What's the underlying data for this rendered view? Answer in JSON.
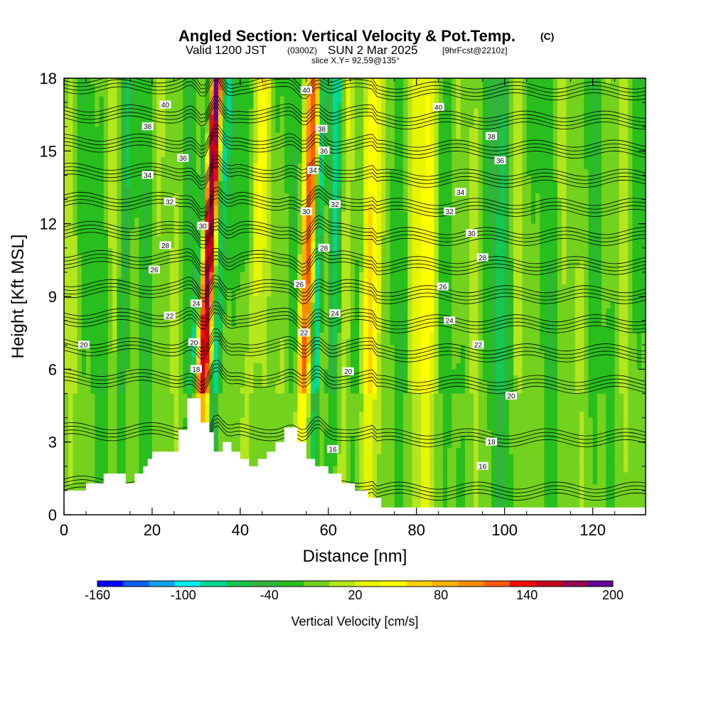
{
  "chart_data": {
    "type": "heatmap",
    "title_main": "Angled Section: Vertical Velocity & Pot.Temp.",
    "title_tag": "(C)",
    "subtitle_parts": [
      "Valid 1200 JST",
      "(0300Z)",
      "SUN 2 Mar 2025",
      "[9hrFcst@2210z]"
    ],
    "slice_text": "slice X,Y= 92,59@135°",
    "xlabel": "Distance [nm]",
    "ylabel": "Height [Kft MSL]",
    "xlim": [
      0,
      132
    ],
    "ylim": [
      0,
      18
    ],
    "x_ticks": [
      "0",
      "20",
      "40",
      "60",
      "80",
      "100",
      "120"
    ],
    "y_ticks": [
      "0",
      "3",
      "6",
      "9",
      "12",
      "15",
      "18"
    ],
    "colorbar": {
      "label": "Vertical Velocity [cm/s]",
      "range": [
        -160,
        200
      ],
      "step": 20,
      "tick_labels": [
        "-160",
        "-100",
        "-40",
        "20",
        "80",
        "140",
        "200"
      ],
      "colors": [
        "#0000ff",
        "#0a5ef5",
        "#12a0f0",
        "#00f0f0",
        "#00d896",
        "#14c850",
        "#32b43c",
        "#28be1e",
        "#73d21e",
        "#b4e61e",
        "#e6f500",
        "#ffff00",
        "#ffd200",
        "#ffb000",
        "#ff8c00",
        "#ff5a00",
        "#f00a0a",
        "#c8001e",
        "#960050",
        "#640096"
      ]
    },
    "terrain": [
      [
        0,
        1.0
      ],
      [
        5,
        1.0
      ],
      [
        5,
        1.3
      ],
      [
        9,
        1.3
      ],
      [
        9,
        1.7
      ],
      [
        14,
        1.7
      ],
      [
        14,
        1.3
      ],
      [
        16,
        1.3
      ],
      [
        16,
        1.7
      ],
      [
        18,
        1.7
      ],
      [
        18,
        2.0
      ],
      [
        19,
        2.0
      ],
      [
        19,
        2.3
      ],
      [
        20,
        2.3
      ],
      [
        20,
        2.6
      ],
      [
        26,
        2.6
      ],
      [
        26,
        3.5
      ],
      [
        28,
        3.5
      ],
      [
        28,
        4.8
      ],
      [
        31,
        4.8
      ],
      [
        31,
        3.8
      ],
      [
        33,
        3.8
      ],
      [
        33,
        3.4
      ],
      [
        34,
        3.4
      ],
      [
        34,
        2.6
      ],
      [
        36,
        2.6
      ],
      [
        36,
        3.0
      ],
      [
        38,
        3.0
      ],
      [
        38,
        2.6
      ],
      [
        40,
        2.6
      ],
      [
        40,
        2.3
      ],
      [
        42,
        2.3
      ],
      [
        42,
        2.0
      ],
      [
        44,
        2.0
      ],
      [
        44,
        2.3
      ],
      [
        46,
        2.3
      ],
      [
        46,
        2.6
      ],
      [
        48,
        2.6
      ],
      [
        48,
        3.0
      ],
      [
        50,
        3.0
      ],
      [
        50,
        3.6
      ],
      [
        53,
        3.6
      ],
      [
        53,
        3.0
      ],
      [
        55,
        3.0
      ],
      [
        55,
        2.3
      ],
      [
        57,
        2.3
      ],
      [
        57,
        2.0
      ],
      [
        60,
        2.0
      ],
      [
        60,
        1.7
      ],
      [
        63,
        1.7
      ],
      [
        63,
        1.3
      ],
      [
        66,
        1.3
      ],
      [
        66,
        1.0
      ],
      [
        69,
        1.0
      ],
      [
        69,
        0.7
      ],
      [
        72,
        0.7
      ],
      [
        72,
        0.3
      ],
      [
        132,
        0.3
      ]
    ],
    "velocity_features": [
      {
        "x": 32.5,
        "w": 1.7,
        "amp": 210,
        "tilt": 0.25
      },
      {
        "x": 35.0,
        "w": 1.3,
        "amp": -110,
        "tilt": 0.2
      },
      {
        "x": 30.2,
        "w": 0.8,
        "amp": -80,
        "tilt": 0.3
      },
      {
        "x": 55.0,
        "w": 1.5,
        "amp": 140,
        "tilt": 0.2
      },
      {
        "x": 57.5,
        "w": 1.0,
        "amp": -95,
        "tilt": 0.15
      },
      {
        "x": 61.0,
        "w": 1.5,
        "amp": -60,
        "tilt": 0.1
      },
      {
        "x": 13.5,
        "w": 1.2,
        "amp": -50,
        "tilt": 0.1
      },
      {
        "x": 43.0,
        "w": 1.6,
        "amp": 50,
        "tilt": 0.25
      },
      {
        "x": 63.5,
        "w": 1.6,
        "amp": 40,
        "tilt": 0.1
      },
      {
        "x": 70.0,
        "w": 2.2,
        "amp": 60,
        "tilt": 0.15
      },
      {
        "x": 82.0,
        "w": 2.4,
        "amp": 60,
        "tilt": 0.1
      },
      {
        "x": 99.0,
        "w": 1.7,
        "amp": -45,
        "tilt": 0.05
      }
    ],
    "theta_levels": [
      16,
      18,
      20,
      22,
      24,
      26,
      28,
      30,
      32,
      34,
      36,
      38,
      40
    ],
    "theta_labels": [
      {
        "x": 4.5,
        "y": 7.0,
        "v": "20"
      },
      {
        "x": 23,
        "y": 16.9,
        "v": "40"
      },
      {
        "x": 19,
        "y": 16.0,
        "v": "38"
      },
      {
        "x": 27,
        "y": 14.7,
        "v": "36"
      },
      {
        "x": 19,
        "y": 14.0,
        "v": "34"
      },
      {
        "x": 24,
        "y": 12.9,
        "v": "32"
      },
      {
        "x": 23,
        "y": 11.1,
        "v": "28"
      },
      {
        "x": 20.5,
        "y": 10.1,
        "v": "26"
      },
      {
        "x": 24,
        "y": 8.2,
        "v": "22"
      },
      {
        "x": 31.5,
        "y": 11.9,
        "v": "30"
      },
      {
        "x": 30,
        "y": 8.7,
        "v": "24"
      },
      {
        "x": 29.5,
        "y": 7.1,
        "v": "20"
      },
      {
        "x": 30,
        "y": 6.0,
        "v": "18"
      },
      {
        "x": 55,
        "y": 17.5,
        "v": "40"
      },
      {
        "x": 58.5,
        "y": 15.9,
        "v": "38"
      },
      {
        "x": 59,
        "y": 15.0,
        "v": "36"
      },
      {
        "x": 56.5,
        "y": 14.2,
        "v": "34"
      },
      {
        "x": 55,
        "y": 12.5,
        "v": "30"
      },
      {
        "x": 61.5,
        "y": 12.8,
        "v": "32"
      },
      {
        "x": 59,
        "y": 11.0,
        "v": "28"
      },
      {
        "x": 53.5,
        "y": 9.5,
        "v": "26"
      },
      {
        "x": 61.5,
        "y": 8.3,
        "v": "24"
      },
      {
        "x": 54.5,
        "y": 7.5,
        "v": "22"
      },
      {
        "x": 64.5,
        "y": 5.9,
        "v": "20"
      },
      {
        "x": 61,
        "y": 2.7,
        "v": "16"
      },
      {
        "x": 85,
        "y": 16.8,
        "v": "40"
      },
      {
        "x": 97,
        "y": 15.6,
        "v": "38"
      },
      {
        "x": 99,
        "y": 14.6,
        "v": "36"
      },
      {
        "x": 90,
        "y": 13.3,
        "v": "34"
      },
      {
        "x": 87.5,
        "y": 12.5,
        "v": "32"
      },
      {
        "x": 92.5,
        "y": 11.6,
        "v": "30"
      },
      {
        "x": 95,
        "y": 10.6,
        "v": "28"
      },
      {
        "x": 86,
        "y": 9.4,
        "v": "26"
      },
      {
        "x": 87.5,
        "y": 8.0,
        "v": "24"
      },
      {
        "x": 94,
        "y": 7.0,
        "v": "22"
      },
      {
        "x": 101.5,
        "y": 4.9,
        "v": "20"
      },
      {
        "x": 97,
        "y": 3.0,
        "v": "18"
      },
      {
        "x": 95,
        "y": 2.0,
        "v": "16"
      }
    ]
  }
}
